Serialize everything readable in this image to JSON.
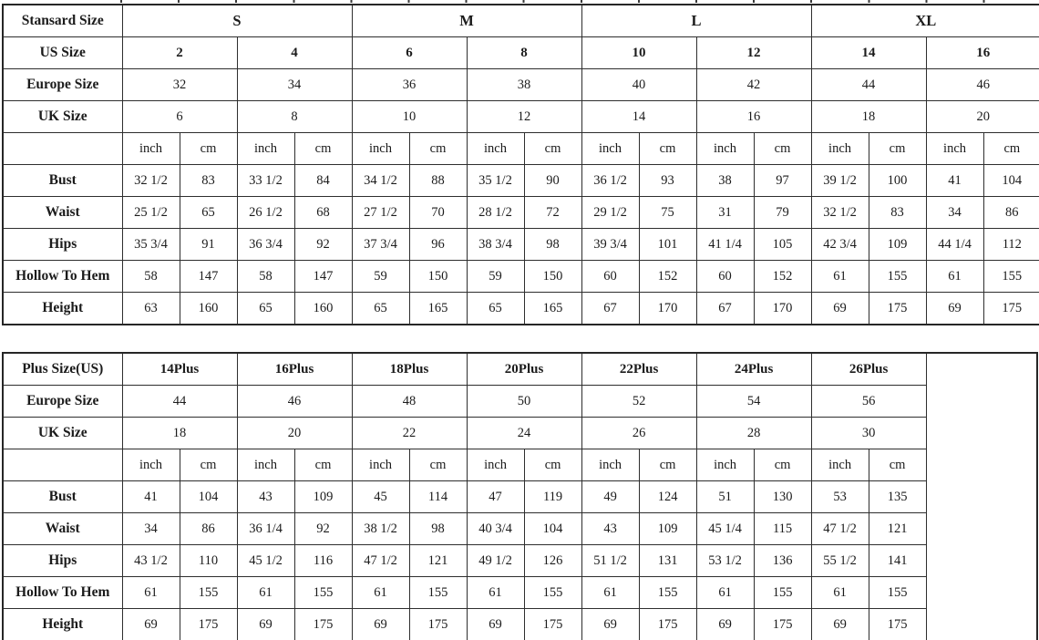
{
  "page": {
    "background": "#ffffff",
    "border_color": "#2e2e2e",
    "text_color": "#1b1b1b"
  },
  "tables": [
    {
      "id": "standard-sizes",
      "rows": [
        {
          "name": "standard-size-header",
          "label": "Stansard Size",
          "style": "header",
          "cells": [
            {
              "t": "S",
              "s": 4
            },
            {
              "t": "M",
              "s": 4
            },
            {
              "t": "L",
              "s": 4
            },
            {
              "t": "XL",
              "s": 4
            }
          ]
        },
        {
          "name": "us-size",
          "label": "US Size",
          "style": "bold",
          "cells": [
            {
              "t": "2",
              "s": 2
            },
            {
              "t": "4",
              "s": 2
            },
            {
              "t": "6",
              "s": 2
            },
            {
              "t": "8",
              "s": 2
            },
            {
              "t": "10",
              "s": 2
            },
            {
              "t": "12",
              "s": 2
            },
            {
              "t": "14",
              "s": 2
            },
            {
              "t": "16",
              "s": 2
            }
          ]
        },
        {
          "name": "europe-size",
          "label": "Europe Size",
          "style": "normal",
          "cells": [
            {
              "t": "32",
              "s": 2
            },
            {
              "t": "34",
              "s": 2
            },
            {
              "t": "36",
              "s": 2
            },
            {
              "t": "38",
              "s": 2
            },
            {
              "t": "40",
              "s": 2
            },
            {
              "t": "42",
              "s": 2
            },
            {
              "t": "44",
              "s": 2
            },
            {
              "t": "46",
              "s": 2
            }
          ]
        },
        {
          "name": "uk-size",
          "label": "UK Size",
          "style": "normal",
          "cells": [
            {
              "t": "6",
              "s": 2
            },
            {
              "t": "8",
              "s": 2
            },
            {
              "t": "10",
              "s": 2
            },
            {
              "t": "12",
              "s": 2
            },
            {
              "t": "14",
              "s": 2
            },
            {
              "t": "16",
              "s": 2
            },
            {
              "t": "18",
              "s": 2
            },
            {
              "t": "20",
              "s": 2
            }
          ]
        },
        {
          "name": "units",
          "label": "",
          "style": "normal",
          "cells": [
            {
              "t": "inch"
            },
            {
              "t": "cm"
            },
            {
              "t": "inch"
            },
            {
              "t": "cm"
            },
            {
              "t": "inch"
            },
            {
              "t": "cm"
            },
            {
              "t": "inch"
            },
            {
              "t": "cm"
            },
            {
              "t": "inch"
            },
            {
              "t": "cm"
            },
            {
              "t": "inch"
            },
            {
              "t": "cm"
            },
            {
              "t": "inch"
            },
            {
              "t": "cm"
            },
            {
              "t": "inch"
            },
            {
              "t": "cm"
            }
          ]
        },
        {
          "name": "bust",
          "label": "Bust",
          "style": "normal",
          "cells": [
            {
              "t": "32 1/2"
            },
            {
              "t": "83"
            },
            {
              "t": "33 1/2"
            },
            {
              "t": "84"
            },
            {
              "t": "34 1/2"
            },
            {
              "t": "88"
            },
            {
              "t": "35 1/2"
            },
            {
              "t": "90"
            },
            {
              "t": "36 1/2"
            },
            {
              "t": "93"
            },
            {
              "t": "38"
            },
            {
              "t": "97"
            },
            {
              "t": "39 1/2"
            },
            {
              "t": "100"
            },
            {
              "t": "41"
            },
            {
              "t": "104"
            }
          ]
        },
        {
          "name": "waist",
          "label": "Waist",
          "style": "normal",
          "cells": [
            {
              "t": "25 1/2"
            },
            {
              "t": "65"
            },
            {
              "t": "26 1/2"
            },
            {
              "t": "68"
            },
            {
              "t": "27 1/2"
            },
            {
              "t": "70"
            },
            {
              "t": "28 1/2"
            },
            {
              "t": "72"
            },
            {
              "t": "29 1/2"
            },
            {
              "t": "75"
            },
            {
              "t": "31"
            },
            {
              "t": "79"
            },
            {
              "t": "32 1/2"
            },
            {
              "t": "83"
            },
            {
              "t": "34"
            },
            {
              "t": "86"
            }
          ]
        },
        {
          "name": "hips",
          "label": "Hips",
          "style": "normal",
          "cells": [
            {
              "t": "35 3/4"
            },
            {
              "t": "91"
            },
            {
              "t": "36 3/4"
            },
            {
              "t": "92"
            },
            {
              "t": "37 3/4"
            },
            {
              "t": "96"
            },
            {
              "t": "38 3/4"
            },
            {
              "t": "98"
            },
            {
              "t": "39 3/4"
            },
            {
              "t": "101"
            },
            {
              "t": "41 1/4"
            },
            {
              "t": "105"
            },
            {
              "t": "42 3/4"
            },
            {
              "t": "109"
            },
            {
              "t": "44 1/4"
            },
            {
              "t": "112"
            }
          ]
        },
        {
          "name": "hollow-to-hem",
          "label": "Hollow To Hem",
          "style": "normal",
          "cells": [
            {
              "t": "58"
            },
            {
              "t": "147"
            },
            {
              "t": "58"
            },
            {
              "t": "147"
            },
            {
              "t": "59"
            },
            {
              "t": "150"
            },
            {
              "t": "59"
            },
            {
              "t": "150"
            },
            {
              "t": "60"
            },
            {
              "t": "152"
            },
            {
              "t": "60"
            },
            {
              "t": "152"
            },
            {
              "t": "61"
            },
            {
              "t": "155"
            },
            {
              "t": "61"
            },
            {
              "t": "155"
            }
          ]
        },
        {
          "name": "height",
          "label": "Height",
          "style": "normal",
          "cells": [
            {
              "t": "63"
            },
            {
              "t": "160"
            },
            {
              "t": "65"
            },
            {
              "t": "160"
            },
            {
              "t": "65"
            },
            {
              "t": "165"
            },
            {
              "t": "65"
            },
            {
              "t": "165"
            },
            {
              "t": "67"
            },
            {
              "t": "170"
            },
            {
              "t": "67"
            },
            {
              "t": "170"
            },
            {
              "t": "69"
            },
            {
              "t": "175"
            },
            {
              "t": "69"
            },
            {
              "t": "175"
            }
          ]
        }
      ]
    },
    {
      "id": "plus-sizes",
      "spacer": true,
      "rows": [
        {
          "name": "plus-size-header",
          "label": "Plus Size(US)",
          "style": "bold",
          "cells": [
            {
              "t": "14Plus",
              "s": 2
            },
            {
              "t": "16Plus",
              "s": 2
            },
            {
              "t": "18Plus",
              "s": 2
            },
            {
              "t": "20Plus",
              "s": 2
            },
            {
              "t": "22Plus",
              "s": 2
            },
            {
              "t": "24Plus",
              "s": 2
            },
            {
              "t": "26Plus",
              "s": 2
            }
          ]
        },
        {
          "name": "europe-size",
          "label": "Europe Size",
          "style": "normal",
          "cells": [
            {
              "t": "44",
              "s": 2
            },
            {
              "t": "46",
              "s": 2
            },
            {
              "t": "48",
              "s": 2
            },
            {
              "t": "50",
              "s": 2
            },
            {
              "t": "52",
              "s": 2
            },
            {
              "t": "54",
              "s": 2
            },
            {
              "t": "56",
              "s": 2
            }
          ]
        },
        {
          "name": "uk-size",
          "label": "UK Size",
          "style": "normal",
          "cells": [
            {
              "t": "18",
              "s": 2
            },
            {
              "t": "20",
              "s": 2
            },
            {
              "t": "22",
              "s": 2
            },
            {
              "t": "24",
              "s": 2
            },
            {
              "t": "26",
              "s": 2
            },
            {
              "t": "28",
              "s": 2
            },
            {
              "t": "30",
              "s": 2
            }
          ]
        },
        {
          "name": "units",
          "label": "",
          "style": "normal",
          "cells": [
            {
              "t": "inch"
            },
            {
              "t": "cm"
            },
            {
              "t": "inch"
            },
            {
              "t": "cm"
            },
            {
              "t": "inch"
            },
            {
              "t": "cm"
            },
            {
              "t": "inch"
            },
            {
              "t": "cm"
            },
            {
              "t": "inch"
            },
            {
              "t": "cm"
            },
            {
              "t": "inch"
            },
            {
              "t": "cm"
            },
            {
              "t": "inch"
            },
            {
              "t": "cm"
            }
          ]
        },
        {
          "name": "bust",
          "label": "Bust",
          "style": "normal",
          "cells": [
            {
              "t": "41"
            },
            {
              "t": "104"
            },
            {
              "t": "43"
            },
            {
              "t": "109"
            },
            {
              "t": "45"
            },
            {
              "t": "114"
            },
            {
              "t": "47"
            },
            {
              "t": "119"
            },
            {
              "t": "49"
            },
            {
              "t": "124"
            },
            {
              "t": "51"
            },
            {
              "t": "130"
            },
            {
              "t": "53"
            },
            {
              "t": "135"
            }
          ]
        },
        {
          "name": "waist",
          "label": "Waist",
          "style": "normal",
          "cells": [
            {
              "t": "34"
            },
            {
              "t": "86"
            },
            {
              "t": "36 1/4"
            },
            {
              "t": "92"
            },
            {
              "t": "38 1/2"
            },
            {
              "t": "98"
            },
            {
              "t": "40 3/4"
            },
            {
              "t": "104"
            },
            {
              "t": "43"
            },
            {
              "t": "109"
            },
            {
              "t": "45 1/4"
            },
            {
              "t": "115"
            },
            {
              "t": "47 1/2"
            },
            {
              "t": "121"
            }
          ]
        },
        {
          "name": "hips",
          "label": "Hips",
          "style": "normal",
          "cells": [
            {
              "t": "43 1/2"
            },
            {
              "t": "110"
            },
            {
              "t": "45 1/2"
            },
            {
              "t": "116"
            },
            {
              "t": "47 1/2"
            },
            {
              "t": "121"
            },
            {
              "t": "49 1/2"
            },
            {
              "t": "126"
            },
            {
              "t": "51 1/2"
            },
            {
              "t": "131"
            },
            {
              "t": "53 1/2"
            },
            {
              "t": "136"
            },
            {
              "t": "55 1/2"
            },
            {
              "t": "141"
            }
          ]
        },
        {
          "name": "hollow-to-hem",
          "label": "Hollow To Hem",
          "style": "normal",
          "cells": [
            {
              "t": "61"
            },
            {
              "t": "155"
            },
            {
              "t": "61"
            },
            {
              "t": "155"
            },
            {
              "t": "61"
            },
            {
              "t": "155"
            },
            {
              "t": "61"
            },
            {
              "t": "155"
            },
            {
              "t": "61"
            },
            {
              "t": "155"
            },
            {
              "t": "61"
            },
            {
              "t": "155"
            },
            {
              "t": "61"
            },
            {
              "t": "155"
            }
          ]
        },
        {
          "name": "height",
          "label": "Height",
          "style": "normal",
          "cells": [
            {
              "t": "69"
            },
            {
              "t": "175"
            },
            {
              "t": "69"
            },
            {
              "t": "175"
            },
            {
              "t": "69"
            },
            {
              "t": "175"
            },
            {
              "t": "69"
            },
            {
              "t": "175"
            },
            {
              "t": "69"
            },
            {
              "t": "175"
            },
            {
              "t": "69"
            },
            {
              "t": "175"
            },
            {
              "t": "69"
            },
            {
              "t": "175"
            }
          ]
        }
      ]
    }
  ]
}
